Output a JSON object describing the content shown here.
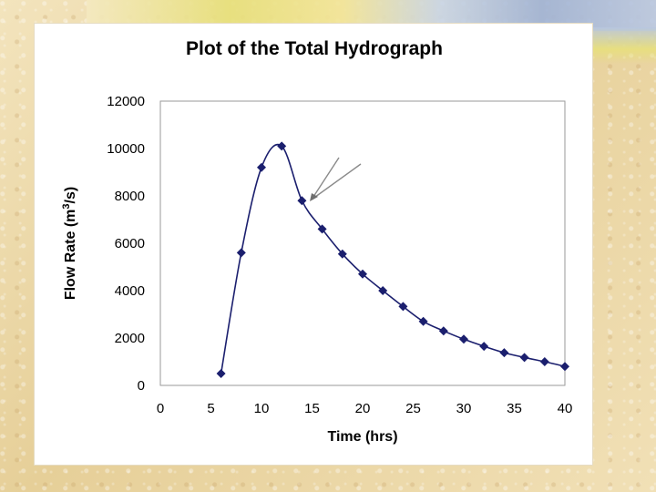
{
  "chart_data": {
    "type": "line",
    "title": "Plot of the Total Hydrograph",
    "xlabel": "Time  (hrs)",
    "ylabel": "Flow Rate (m³/s)",
    "ylabel_main": "Flow Rate (m",
    "ylabel_sup": "3",
    "ylabel_tail": "/s)",
    "xlim": [
      0,
      40
    ],
    "ylim": [
      0,
      12000
    ],
    "x_ticks": [
      0,
      5,
      10,
      15,
      20,
      25,
      30,
      35,
      40
    ],
    "y_ticks": [
      0,
      2000,
      4000,
      6000,
      8000,
      10000,
      12000
    ],
    "grid": false,
    "legend": "none",
    "series": [
      {
        "marker": "diamond",
        "color": "#1b1f6e",
        "x": [
          6,
          8,
          10,
          12,
          14,
          16,
          18,
          20,
          22,
          24,
          26,
          28,
          30,
          32,
          34,
          36,
          38,
          40
        ],
        "y": [
          500,
          5600,
          9200,
          10100,
          7800,
          6600,
          5550,
          4700,
          4000,
          3330,
          2700,
          2300,
          1950,
          1650,
          1380,
          1180,
          1000,
          800
        ]
      }
    ],
    "annotation": "arrow pointing to inflection point on recession limb"
  }
}
